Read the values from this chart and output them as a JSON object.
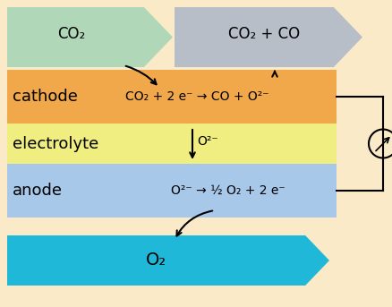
{
  "bg_color": "#faeac8",
  "cathode_color": "#f0a84a",
  "electrolyte_color": "#f0ee80",
  "anode_color": "#a8c8ea",
  "arrow_co2_color": "#b0d8b8",
  "arrow_co2co_color": "#b8bec8",
  "arrow_o2_color": "#20b8d8",
  "cathode_label": "cathode",
  "electrolyte_label": "electrolyte",
  "anode_label": "anode",
  "cathode_eq": "CO₂ + 2 e⁻ → CO + O²⁻",
  "electrolyte_ion": "O²⁻",
  "anode_eq": "O²⁻ → ½ O₂ + 2 e⁻",
  "co2_label": "CO₂",
  "co2co_label": "CO₂ + CO",
  "o2_label": "O₂",
  "figsize": [
    4.39,
    3.43
  ],
  "dpi": 100
}
